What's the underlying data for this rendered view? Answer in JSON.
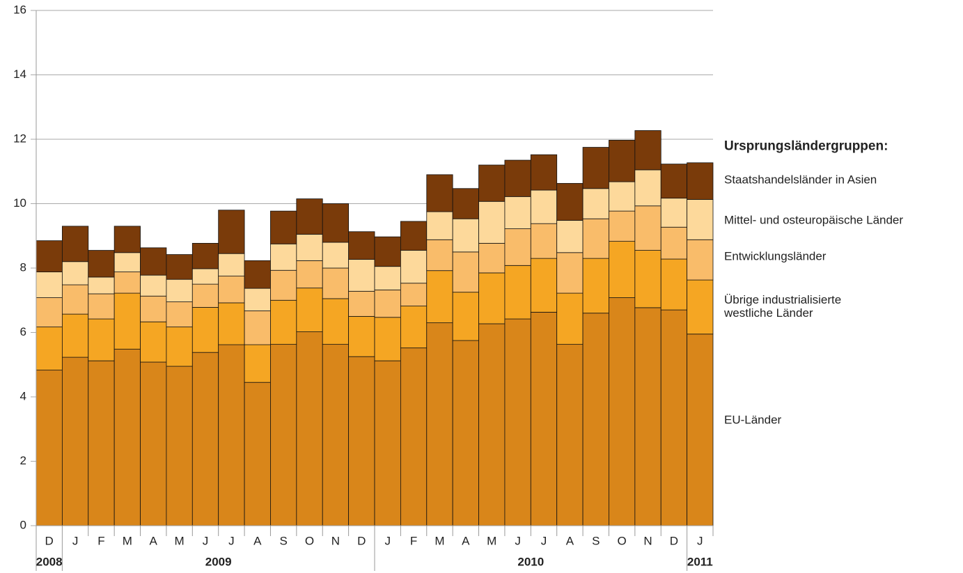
{
  "chart_data": {
    "type": "stacked_bar",
    "categories": [
      "D",
      "J",
      "F",
      "M",
      "A",
      "M",
      "J",
      "J",
      "A",
      "S",
      "O",
      "N",
      "D",
      "J",
      "F",
      "M",
      "A",
      "M",
      "J",
      "J",
      "A",
      "S",
      "O",
      "N",
      "D",
      "J"
    ],
    "years": [
      "2008",
      "2009",
      null,
      null,
      null,
      null,
      null,
      null,
      null,
      null,
      null,
      null,
      null,
      "2010",
      null,
      null,
      null,
      null,
      null,
      null,
      null,
      null,
      null,
      null,
      null,
      "2011"
    ],
    "legend_title": "Ursprungsländergruppen:",
    "series": [
      {
        "name": "EU-Länder",
        "color": "#d9861a",
        "values": [
          4.83,
          5.23,
          5.12,
          5.48,
          5.08,
          4.95,
          5.38,
          5.62,
          4.45,
          5.63,
          6.02,
          5.63,
          5.25,
          5.12,
          5.52,
          6.3,
          5.75,
          6.27,
          6.42,
          6.63,
          5.63,
          6.6,
          7.08,
          6.77,
          6.7,
          5.95
        ]
      },
      {
        "name": "Übrige industrialisierte\nwestliche Länder",
        "color": "#f5a623",
        "values": [
          1.34,
          1.34,
          1.3,
          1.74,
          1.25,
          1.22,
          1.4,
          1.3,
          1.17,
          1.37,
          1.36,
          1.42,
          1.25,
          1.35,
          1.3,
          1.62,
          1.5,
          1.58,
          1.66,
          1.67,
          1.59,
          1.7,
          1.75,
          1.78,
          1.58,
          1.68
        ]
      },
      {
        "name": "Entwicklungsländer",
        "color": "#f9bc6a",
        "values": [
          0.91,
          0.91,
          0.78,
          0.66,
          0.8,
          0.78,
          0.72,
          0.83,
          1.05,
          0.93,
          0.85,
          0.95,
          0.78,
          0.85,
          0.71,
          0.96,
          1.25,
          0.92,
          1.14,
          1.08,
          1.26,
          1.23,
          0.94,
          1.38,
          0.99,
          1.25
        ]
      },
      {
        "name": "Mittel- und osteuropäische Länder",
        "color": "#fdd99b",
        "values": [
          0.8,
          0.72,
          0.52,
          0.6,
          0.65,
          0.7,
          0.48,
          0.7,
          0.7,
          0.82,
          0.82,
          0.8,
          0.99,
          0.73,
          1.02,
          0.87,
          1.03,
          1.3,
          1.0,
          1.04,
          1.0,
          0.94,
          0.91,
          1.12,
          0.9,
          1.25
        ]
      },
      {
        "name": "Staatshandelsländer in Asien",
        "color": "#7a3b0a",
        "values": [
          0.97,
          1.1,
          0.83,
          0.82,
          0.85,
          0.77,
          0.79,
          1.35,
          0.86,
          1.02,
          1.1,
          1.2,
          0.86,
          0.92,
          0.9,
          1.15,
          0.94,
          1.13,
          1.13,
          1.1,
          1.15,
          1.28,
          1.29,
          1.22,
          1.06,
          1.14
        ]
      }
    ],
    "ylim": [
      0,
      16
    ],
    "yticks": [
      0,
      2,
      4,
      6,
      8,
      10,
      12,
      14,
      16
    ],
    "grid": true
  }
}
